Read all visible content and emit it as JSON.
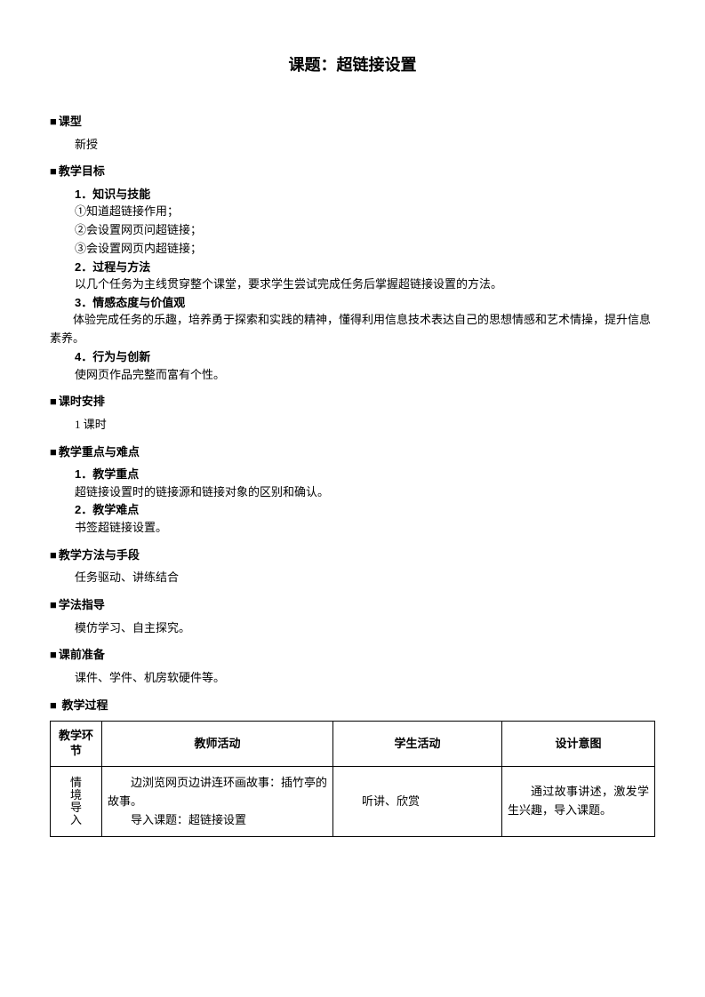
{
  "title": "课题：超链接设置",
  "sections": {
    "type": {
      "heading": "课型",
      "text": "新授"
    },
    "goal": {
      "heading": "教学目标",
      "items": [
        {
          "h": "1．知识与技能",
          "lines": [
            "①知道超链接作用；",
            "②会设置网页问超链接；",
            "③会设置网页内超链接；"
          ]
        },
        {
          "h": "2．过程与方法",
          "lines": [
            "以几个任务为主线贯穿整个课堂，要求学生尝试完成任务后掌握超链接设置的方法。"
          ]
        },
        {
          "h": "3．情感态度与价值观",
          "lines_full": [
            "体验完成任务的乐趣，培养勇于探索和实践的精神，懂得利用信息技术表达自己的思想情感和艺术情操，提升信息素养。"
          ]
        },
        {
          "h": "4．行为与创新",
          "lines": [
            "使网页作品完整而富有个性。"
          ]
        }
      ]
    },
    "period": {
      "heading": "课时安排",
      "text": "1 课时"
    },
    "keypoints": {
      "heading": "教学重点与难点",
      "items": [
        {
          "h": "1．教学重点",
          "lines": [
            "超链接设置时的链接源和链接对象的区别和确认。"
          ]
        },
        {
          "h": "2．教学难点",
          "lines": [
            "书签超链接设置。"
          ]
        }
      ]
    },
    "method": {
      "heading": "教学方法与手段",
      "text": "任务驱动、讲练结合"
    },
    "guide": {
      "heading": "学法指导",
      "text": "模仿学习、自主探究。"
    },
    "prepare": {
      "heading": "课前准备",
      "text": "课件、学件、机房软硬件等。"
    },
    "process": {
      "heading": "教学过程",
      "columns": [
        "教学环节",
        "教师活动",
        "学生活动",
        "设计意图"
      ],
      "stage_label": "情境导入",
      "teacher_l1": "边浏览网页边讲连环画故事：插竹亭的故事。",
      "teacher_l2": "导入课题：超链接设置",
      "student": "听讲、欣赏",
      "design": "通过故事讲述，激发学生兴趣，导入课题。"
    }
  }
}
